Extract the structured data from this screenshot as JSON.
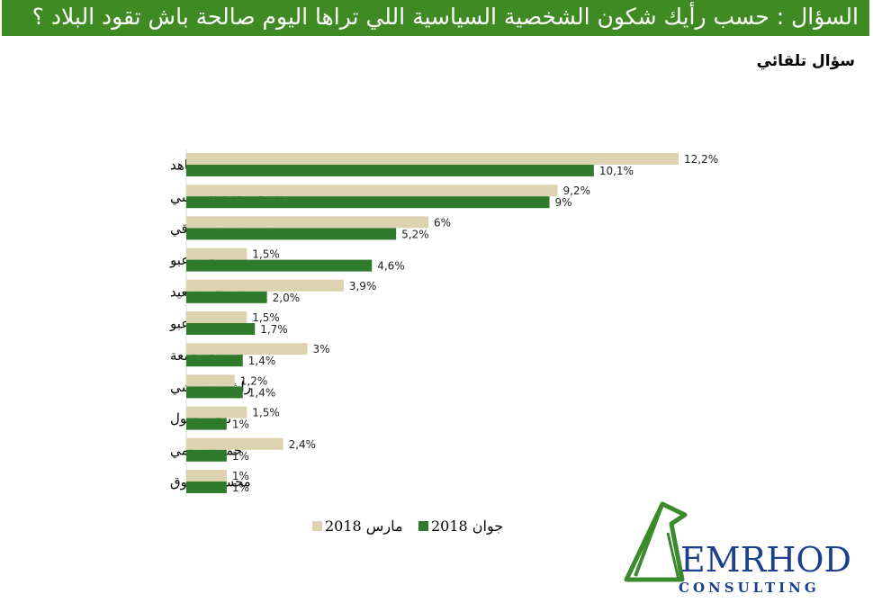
{
  "header": {
    "question": "السؤال :  حسب رأيك شكون الشخصية  السياسية اللي تراها اليوم صالحة باش تقود البلاد ؟",
    "subtitle": "سؤال تلقائي"
  },
  "colors": {
    "header_bg": "#3f8a23",
    "series_march": "#ddd3b0",
    "series_june": "#2f7a2b",
    "logo_blue": "#1c3f8f",
    "logo_green": "#3c8a2e"
  },
  "chart_data": {
    "type": "bar",
    "orientation": "horizontal",
    "categories": [
      "يوسف الشاهد",
      "الباجي قايد السبسي",
      "المنصف المرزوقي",
      "محمد عبو",
      "الصافي سعيد",
      "سامية عبو",
      "المهدي جمعة",
      "راشد الغنوشي",
      "ناجي جلول",
      "حمة الهمامي",
      "محسن مرزوق"
    ],
    "series": [
      {
        "name": "مارس 2018",
        "values": [
          12.2,
          9.2,
          6,
          1.5,
          3.9,
          1.5,
          3,
          1.2,
          1.5,
          2.4,
          1
        ],
        "labels": [
          "12,2%",
          "9,2%",
          "6%",
          "1,5%",
          "3,9%",
          "1,5%",
          "3%",
          "1,2%",
          "1,5%",
          "2,4%",
          "1%"
        ]
      },
      {
        "name": "جوان 2018",
        "values": [
          10.1,
          9,
          5.2,
          4.6,
          2.0,
          1.7,
          1.4,
          1.4,
          1,
          1,
          1
        ],
        "labels": [
          "10,1%",
          "9%",
          "5,2%",
          "4,6%",
          "2,0%",
          "1,7%",
          "1,4%",
          "1,4%",
          "1%",
          "1%",
          "1%"
        ]
      }
    ],
    "xlim": [
      0,
      12.2
    ],
    "grid": false,
    "legend_position": "bottom"
  },
  "legend": {
    "march": "مارس 2018",
    "june": "جوان 2018"
  },
  "logo": {
    "name": "EMRHOD",
    "sub": "CONSULTING"
  }
}
